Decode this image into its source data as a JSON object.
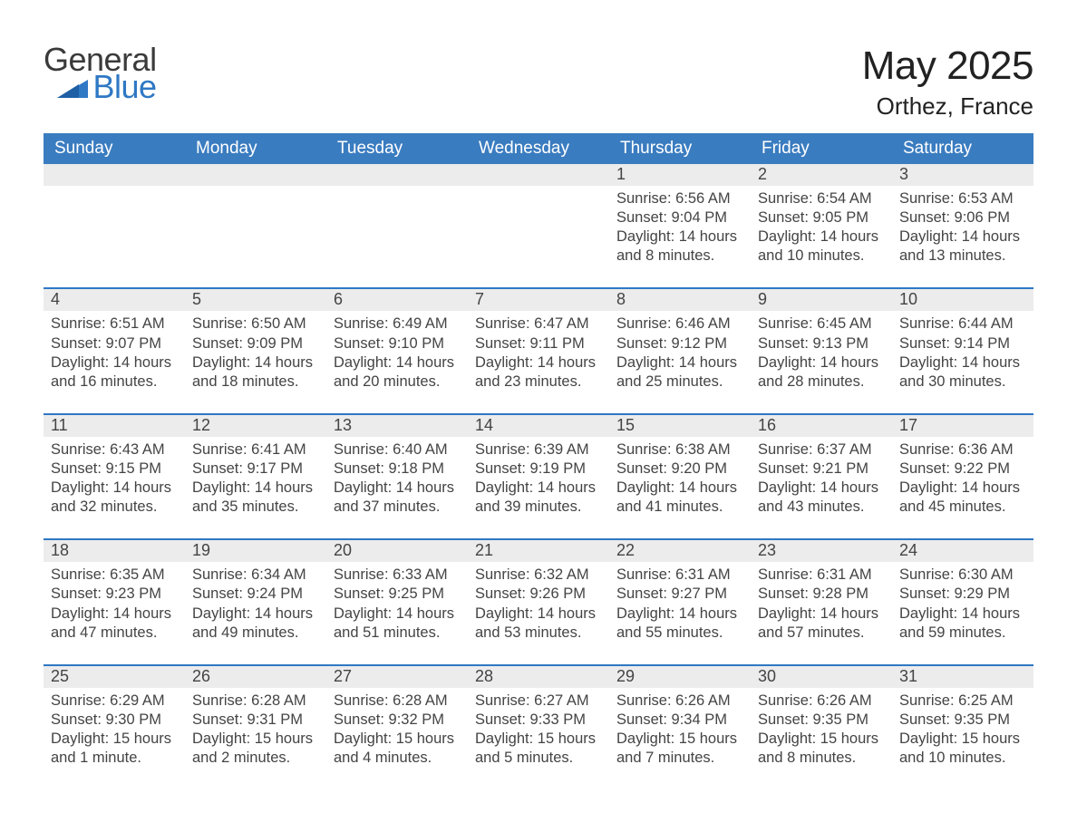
{
  "brand": {
    "word1": "General",
    "word2": "Blue",
    "accent": "#2f78c4",
    "text": "#3a3a3a"
  },
  "title": "May 2025",
  "location": "Orthez, France",
  "colors": {
    "header_bg": "#3a7cc0",
    "header_text": "#ffffff",
    "row_accent": "#2f78c4",
    "daynum_bg": "#ececec",
    "body_text": "#444444",
    "page_bg": "#ffffff"
  },
  "weekdays": [
    "Sunday",
    "Monday",
    "Tuesday",
    "Wednesday",
    "Thursday",
    "Friday",
    "Saturday"
  ],
  "weeks": [
    [
      null,
      null,
      null,
      null,
      {
        "n": "1",
        "sunrise": "6:56 AM",
        "sunset": "9:04 PM",
        "daylight": "14 hours and 8 minutes."
      },
      {
        "n": "2",
        "sunrise": "6:54 AM",
        "sunset": "9:05 PM",
        "daylight": "14 hours and 10 minutes."
      },
      {
        "n": "3",
        "sunrise": "6:53 AM",
        "sunset": "9:06 PM",
        "daylight": "14 hours and 13 minutes."
      }
    ],
    [
      {
        "n": "4",
        "sunrise": "6:51 AM",
        "sunset": "9:07 PM",
        "daylight": "14 hours and 16 minutes."
      },
      {
        "n": "5",
        "sunrise": "6:50 AM",
        "sunset": "9:09 PM",
        "daylight": "14 hours and 18 minutes."
      },
      {
        "n": "6",
        "sunrise": "6:49 AM",
        "sunset": "9:10 PM",
        "daylight": "14 hours and 20 minutes."
      },
      {
        "n": "7",
        "sunrise": "6:47 AM",
        "sunset": "9:11 PM",
        "daylight": "14 hours and 23 minutes."
      },
      {
        "n": "8",
        "sunrise": "6:46 AM",
        "sunset": "9:12 PM",
        "daylight": "14 hours and 25 minutes."
      },
      {
        "n": "9",
        "sunrise": "6:45 AM",
        "sunset": "9:13 PM",
        "daylight": "14 hours and 28 minutes."
      },
      {
        "n": "10",
        "sunrise": "6:44 AM",
        "sunset": "9:14 PM",
        "daylight": "14 hours and 30 minutes."
      }
    ],
    [
      {
        "n": "11",
        "sunrise": "6:43 AM",
        "sunset": "9:15 PM",
        "daylight": "14 hours and 32 minutes."
      },
      {
        "n": "12",
        "sunrise": "6:41 AM",
        "sunset": "9:17 PM",
        "daylight": "14 hours and 35 minutes."
      },
      {
        "n": "13",
        "sunrise": "6:40 AM",
        "sunset": "9:18 PM",
        "daylight": "14 hours and 37 minutes."
      },
      {
        "n": "14",
        "sunrise": "6:39 AM",
        "sunset": "9:19 PM",
        "daylight": "14 hours and 39 minutes."
      },
      {
        "n": "15",
        "sunrise": "6:38 AM",
        "sunset": "9:20 PM",
        "daylight": "14 hours and 41 minutes."
      },
      {
        "n": "16",
        "sunrise": "6:37 AM",
        "sunset": "9:21 PM",
        "daylight": "14 hours and 43 minutes."
      },
      {
        "n": "17",
        "sunrise": "6:36 AM",
        "sunset": "9:22 PM",
        "daylight": "14 hours and 45 minutes."
      }
    ],
    [
      {
        "n": "18",
        "sunrise": "6:35 AM",
        "sunset": "9:23 PM",
        "daylight": "14 hours and 47 minutes."
      },
      {
        "n": "19",
        "sunrise": "6:34 AM",
        "sunset": "9:24 PM",
        "daylight": "14 hours and 49 minutes."
      },
      {
        "n": "20",
        "sunrise": "6:33 AM",
        "sunset": "9:25 PM",
        "daylight": "14 hours and 51 minutes."
      },
      {
        "n": "21",
        "sunrise": "6:32 AM",
        "sunset": "9:26 PM",
        "daylight": "14 hours and 53 minutes."
      },
      {
        "n": "22",
        "sunrise": "6:31 AM",
        "sunset": "9:27 PM",
        "daylight": "14 hours and 55 minutes."
      },
      {
        "n": "23",
        "sunrise": "6:31 AM",
        "sunset": "9:28 PM",
        "daylight": "14 hours and 57 minutes."
      },
      {
        "n": "24",
        "sunrise": "6:30 AM",
        "sunset": "9:29 PM",
        "daylight": "14 hours and 59 minutes."
      }
    ],
    [
      {
        "n": "25",
        "sunrise": "6:29 AM",
        "sunset": "9:30 PM",
        "daylight": "15 hours and 1 minute."
      },
      {
        "n": "26",
        "sunrise": "6:28 AM",
        "sunset": "9:31 PM",
        "daylight": "15 hours and 2 minutes."
      },
      {
        "n": "27",
        "sunrise": "6:28 AM",
        "sunset": "9:32 PM",
        "daylight": "15 hours and 4 minutes."
      },
      {
        "n": "28",
        "sunrise": "6:27 AM",
        "sunset": "9:33 PM",
        "daylight": "15 hours and 5 minutes."
      },
      {
        "n": "29",
        "sunrise": "6:26 AM",
        "sunset": "9:34 PM",
        "daylight": "15 hours and 7 minutes."
      },
      {
        "n": "30",
        "sunrise": "6:26 AM",
        "sunset": "9:35 PM",
        "daylight": "15 hours and 8 minutes."
      },
      {
        "n": "31",
        "sunrise": "6:25 AM",
        "sunset": "9:35 PM",
        "daylight": "15 hours and 10 minutes."
      }
    ]
  ],
  "labels": {
    "sunrise": "Sunrise: ",
    "sunset": "Sunset: ",
    "daylight": "Daylight: "
  }
}
